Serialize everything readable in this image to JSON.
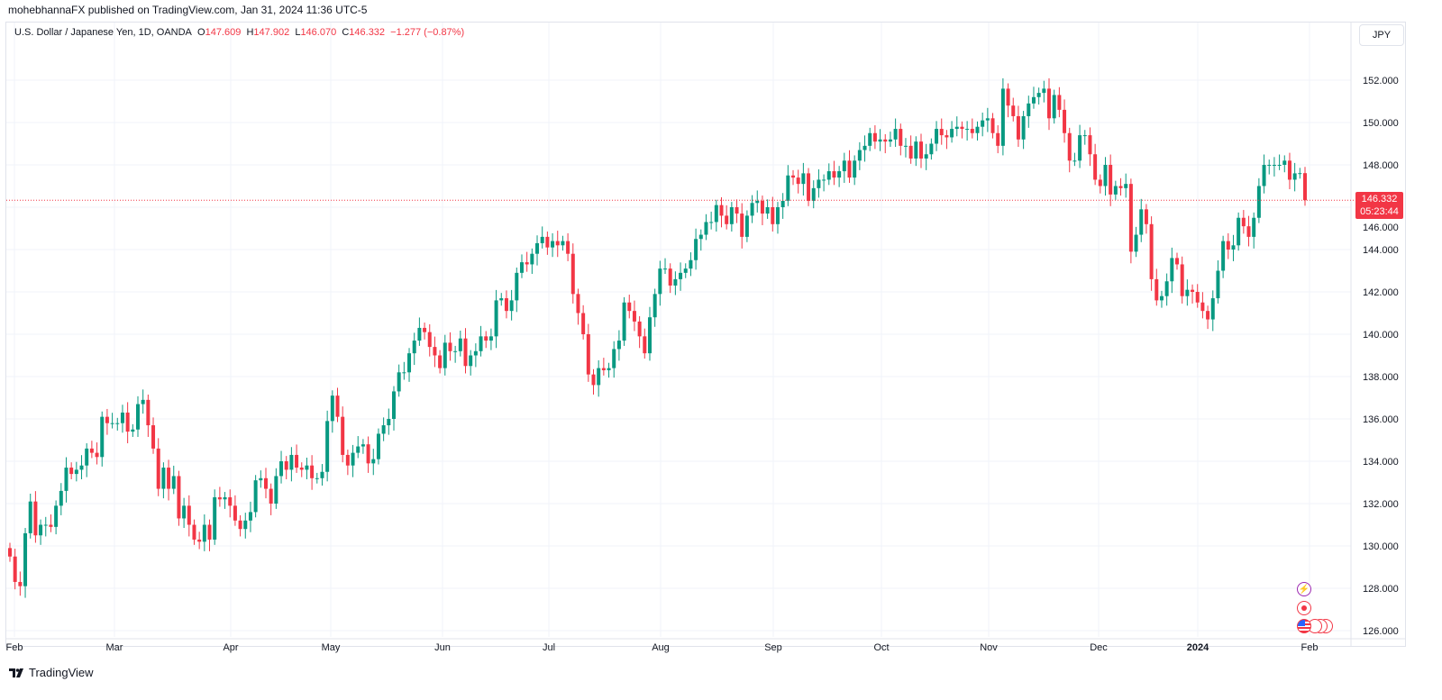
{
  "publisher": "mohebhannaFX published on TradingView.com, Jan 31, 2024 11:36 UTC-5",
  "legend": {
    "symbol": "U.S. Dollar / Japanese Yen, 1D, OANDA",
    "o_label": "O",
    "o": "147.609",
    "h_label": "H",
    "h": "147.902",
    "l_label": "L",
    "l": "146.070",
    "c_label": "C",
    "c": "146.332",
    "change": "−1.277 (−0.87%)"
  },
  "currency_button": "JPY",
  "last_price": {
    "price": "146.332",
    "countdown": "05:23:44"
  },
  "footer_brand": "TradingView",
  "colors": {
    "up": "#089981",
    "down": "#f23645",
    "grid": "#f0f3fa",
    "last_price_line": "#f23645"
  },
  "event_icons": [
    "lightning-icon",
    "dot-record-icon",
    "us-flag-icon"
  ],
  "chart_data": {
    "type": "candlestick",
    "title": "U.S. Dollar / Japanese Yen, 1D, OANDA",
    "interval": "1D",
    "ylim": [
      125.6,
      153.0
    ],
    "y_ticks": [
      "152.000",
      "150.000",
      "148.000",
      "146.000",
      "144.000",
      "142.000",
      "140.000",
      "138.000",
      "136.000",
      "134.000",
      "132.000",
      "130.000",
      "128.000",
      "126.000"
    ],
    "y_tick_values": [
      152,
      150,
      148,
      146,
      144,
      142,
      140,
      138,
      136,
      134,
      132,
      130,
      128,
      126
    ],
    "x_ticks": [
      "Feb",
      "Mar",
      "Apr",
      "May",
      "Jun",
      "Jul",
      "Aug",
      "Sep",
      "Oct",
      "Nov",
      "Dec",
      "2024",
      "Feb"
    ],
    "grid": true,
    "last_candle": {
      "open": 147.609,
      "high": 147.902,
      "low": 146.07,
      "close": 146.332
    },
    "closes": [
      129.5,
      128.3,
      128.1,
      130.6,
      132.1,
      130.5,
      131.0,
      131.0,
      130.9,
      131.9,
      132.6,
      133.7,
      133.4,
      133.6,
      133.8,
      134.6,
      134.4,
      134.2,
      136.1,
      135.8,
      135.8,
      135.8,
      136.3,
      135.4,
      135.5,
      136.7,
      136.9,
      135.7,
      134.6,
      132.7,
      133.7,
      132.7,
      133.3,
      131.3,
      131.9,
      131.0,
      130.3,
      130.2,
      131.0,
      130.3,
      132.3,
      132.2,
      132.3,
      131.9,
      131.2,
      130.8,
      131.2,
      131.6,
      133.1,
      133.2,
      132.7,
      132.0,
      133.3,
      134.0,
      133.6,
      134.3,
      133.7,
      133.6,
      133.8,
      133.2,
      133.2,
      133.5,
      135.9,
      137.1,
      136.1,
      134.3,
      133.8,
      134.4,
      134.7,
      134.8,
      133.9,
      134.1,
      135.3,
      135.7,
      136.0,
      137.3,
      138.2,
      138.2,
      139.1,
      139.7,
      140.3,
      140.1,
      139.4,
      139.0,
      138.4,
      139.6,
      139.2,
      139.2,
      139.8,
      138.5,
      139.0,
      139.2,
      139.9,
      139.7,
      139.9,
      141.6,
      141.7,
      141.1,
      141.6,
      142.9,
      143.4,
      143.3,
      143.8,
      144.3,
      144.6,
      144.1,
      144.4,
      144.2,
      144.4,
      143.8,
      141.9,
      141.0,
      140.0,
      138.1,
      137.6,
      138.4,
      138.3,
      138.4,
      139.3,
      139.7,
      141.5,
      141.1,
      140.6,
      139.9,
      139.1,
      140.8,
      141.9,
      143.1,
      143.1,
      142.3,
      142.6,
      142.9,
      143.1,
      143.5,
      144.5,
      144.7,
      145.3,
      145.3,
      146.1,
      145.6,
      145.2,
      146.0,
      145.7,
      144.6,
      145.6,
      146.2,
      146.3,
      145.7,
      146.0,
      145.2,
      146.0,
      146.3,
      147.5,
      147.4,
      147.1,
      147.6,
      146.3,
      146.9,
      147.3,
      147.3,
      147.7,
      147.4,
      147.7,
      148.2,
      147.4,
      148.2,
      148.7,
      148.9,
      149.5,
      149.1,
      149.2,
      149.1,
      149.2,
      149.7,
      148.9,
      148.9,
      148.3,
      149.1,
      148.3,
      148.5,
      149.0,
      149.7,
      149.4,
      149.3,
      149.7,
      149.8,
      149.7,
      149.7,
      149.5,
      149.8,
      150.1,
      150.2,
      149.5,
      148.9,
      151.6,
      150.8,
      150.3,
      149.2,
      150.3,
      150.9,
      151.2,
      151.4,
      151.6,
      150.2,
      151.3,
      150.6,
      149.5,
      148.2,
      148.2,
      149.4,
      149.4,
      148.5,
      147.3,
      147.0,
      148.0,
      146.6,
      147.0,
      146.9,
      147.1,
      143.9,
      144.7,
      145.9,
      145.2,
      142.6,
      141.6,
      141.8,
      142.5,
      143.6,
      143.3,
      141.8,
      142.1,
      142.0,
      141.5,
      141.1,
      140.7,
      141.7,
      143.0,
      144.4,
      144.0,
      144.2,
      145.5,
      145.1,
      144.6,
      145.5,
      147.0,
      148.0,
      148.0,
      148.0,
      148.0,
      148.2,
      147.3,
      147.6,
      147.609,
      146.332
    ]
  }
}
